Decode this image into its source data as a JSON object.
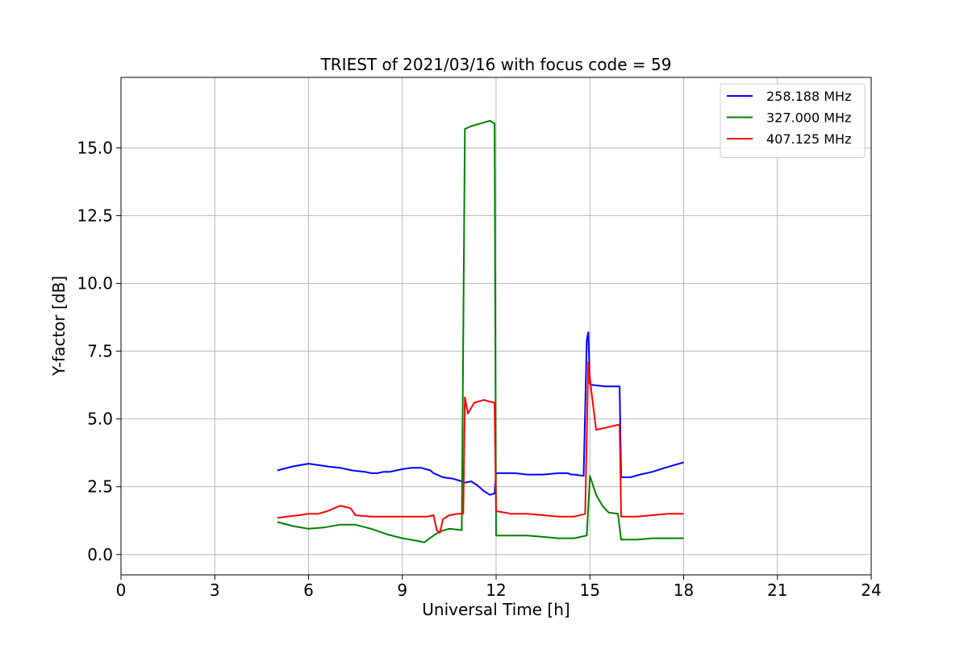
{
  "chart_data": {
    "type": "line",
    "title": "TRIEST of 2021/03/16 with focus code = 59",
    "xlabel": "Universal Time [h]",
    "ylabel": "Y-factor [dB]",
    "xlim": [
      0,
      24
    ],
    "ylim": [
      -0.75,
      17.6
    ],
    "xticks": [
      0,
      3,
      6,
      9,
      12,
      15,
      18,
      21,
      24
    ],
    "xtick_labels": [
      "0",
      "3",
      "6",
      "9",
      "12",
      "15",
      "18",
      "21",
      "24"
    ],
    "yticks": [
      0.0,
      2.5,
      5.0,
      7.5,
      10.0,
      12.5,
      15.0
    ],
    "ytick_labels": [
      "0.0",
      "2.5",
      "5.0",
      "7.5",
      "10.0",
      "12.5",
      "15.0"
    ],
    "grid": true,
    "legend_position": "top-right",
    "series": [
      {
        "name": "258.188 MHz",
        "color": "#0000ff",
        "x": [
          5.0,
          5.5,
          6.0,
          6.3,
          6.6,
          7.0,
          7.4,
          7.8,
          8.0,
          8.2,
          8.4,
          8.6,
          8.8,
          9.0,
          9.3,
          9.6,
          9.9,
          10.0,
          10.1,
          10.3,
          10.6,
          10.9,
          11.0,
          11.2,
          11.4,
          11.6,
          11.8,
          11.95,
          12.0,
          12.3,
          12.6,
          13.0,
          13.5,
          14.0,
          14.3,
          14.4,
          14.5,
          14.8,
          14.9,
          14.95,
          15.0,
          15.1,
          15.5,
          15.95,
          16.0,
          16.3,
          16.6,
          17.0,
          17.4,
          17.7,
          18.0
        ],
        "y": [
          3.1,
          3.25,
          3.35,
          3.3,
          3.25,
          3.2,
          3.1,
          3.05,
          3.0,
          3.0,
          3.05,
          3.05,
          3.1,
          3.15,
          3.2,
          3.2,
          3.1,
          3.0,
          2.95,
          2.85,
          2.8,
          2.7,
          2.65,
          2.7,
          2.55,
          2.35,
          2.2,
          2.25,
          3.0,
          3.0,
          3.0,
          2.95,
          2.95,
          3.0,
          3.0,
          2.95,
          2.95,
          2.9,
          7.9,
          8.2,
          6.3,
          6.25,
          6.2,
          6.2,
          2.85,
          2.85,
          2.95,
          3.05,
          3.2,
          3.3,
          3.4
        ]
      },
      {
        "name": "327.000 MHz",
        "color": "#008000",
        "x": [
          5.0,
          5.5,
          6.0,
          6.5,
          7.0,
          7.5,
          8.0,
          8.5,
          9.0,
          9.5,
          9.7,
          10.0,
          10.2,
          10.5,
          10.9,
          11.0,
          11.2,
          11.5,
          11.8,
          11.95,
          12.0,
          12.5,
          13.0,
          13.5,
          14.0,
          14.5,
          14.9,
          15.0,
          15.2,
          15.4,
          15.6,
          15.9,
          16.0,
          16.5,
          17.0,
          17.5,
          18.0
        ],
        "y": [
          1.2,
          1.05,
          0.95,
          1.0,
          1.1,
          1.1,
          0.95,
          0.75,
          0.6,
          0.5,
          0.45,
          0.7,
          0.85,
          0.95,
          0.9,
          15.7,
          15.8,
          15.9,
          16.0,
          15.9,
          0.7,
          0.7,
          0.7,
          0.65,
          0.6,
          0.6,
          0.7,
          2.9,
          2.2,
          1.8,
          1.55,
          1.5,
          0.55,
          0.55,
          0.6,
          0.6,
          0.6
        ]
      },
      {
        "name": "407.125 MHz",
        "color": "#ff0000",
        "x": [
          5.0,
          5.3,
          5.7,
          6.0,
          6.3,
          6.6,
          7.0,
          7.2,
          7.35,
          7.5,
          8.0,
          8.5,
          9.0,
          9.5,
          9.8,
          10.0,
          10.1,
          10.2,
          10.3,
          10.5,
          10.8,
          10.95,
          11.0,
          11.1,
          11.3,
          11.6,
          11.95,
          12.0,
          12.5,
          13.0,
          13.5,
          14.0,
          14.5,
          14.85,
          14.95,
          15.05,
          15.2,
          15.6,
          15.95,
          16.0,
          16.5,
          17.0,
          17.5,
          18.0
        ],
        "y": [
          1.35,
          1.4,
          1.45,
          1.5,
          1.5,
          1.6,
          1.8,
          1.75,
          1.7,
          1.45,
          1.4,
          1.4,
          1.4,
          1.4,
          1.4,
          1.45,
          0.9,
          0.8,
          1.3,
          1.45,
          1.5,
          1.5,
          5.8,
          5.2,
          5.6,
          5.7,
          5.6,
          1.6,
          1.5,
          1.5,
          1.45,
          1.4,
          1.4,
          1.5,
          7.1,
          6.0,
          4.6,
          4.7,
          4.8,
          1.4,
          1.4,
          1.45,
          1.5,
          1.5
        ]
      }
    ]
  }
}
